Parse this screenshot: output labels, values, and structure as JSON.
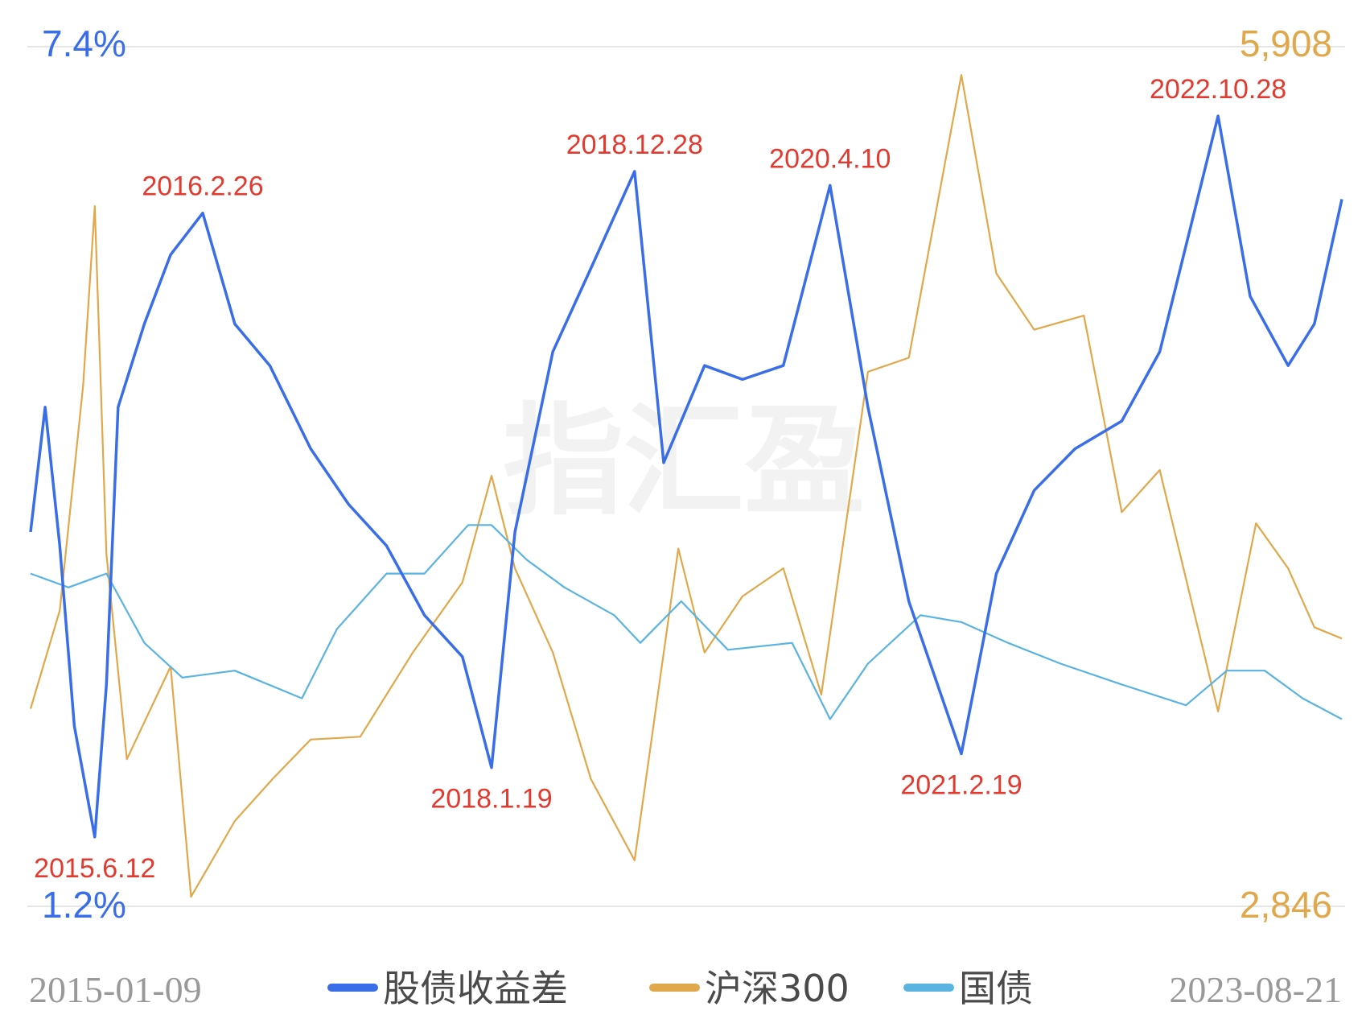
{
  "chart_data": {
    "type": "line",
    "watermark": "指汇盈",
    "x_start_label": "2015-01-09",
    "x_end_label": "2023-08-21",
    "left_axis": {
      "max_label": "7.4%",
      "min_label": "1.2%",
      "range": [
        1.2,
        7.4
      ],
      "color": "#3a6ee8"
    },
    "right_axis": {
      "max_label": "5,908",
      "min_label": "2,846",
      "range": [
        2846,
        5908
      ],
      "color": "#e0a84a"
    },
    "grid": true,
    "legend_position": "bottom",
    "series": [
      {
        "name": "股债收益差",
        "axis": "left",
        "color": "#3a6ee8",
        "points": [
          [
            "2015-01-09",
            3.9
          ],
          [
            "2015-02-13",
            4.8
          ],
          [
            "2015-03-20",
            3.8
          ],
          [
            "2015-04-24",
            2.5
          ],
          [
            "2015-06-12",
            1.7
          ],
          [
            "2015-07-10",
            2.8
          ],
          [
            "2015-08-07",
            4.8
          ],
          [
            "2015-10-09",
            5.4
          ],
          [
            "2015-12-11",
            5.9
          ],
          [
            "2016-02-26",
            6.2
          ],
          [
            "2016-05-13",
            5.4
          ],
          [
            "2016-08-05",
            5.1
          ],
          [
            "2016-11-11",
            4.5
          ],
          [
            "2017-02-10",
            4.1
          ],
          [
            "2017-05-12",
            3.8
          ],
          [
            "2017-08-11",
            3.3
          ],
          [
            "2017-11-10",
            3.0
          ],
          [
            "2018-01-19",
            2.2
          ],
          [
            "2018-03-16",
            3.9
          ],
          [
            "2018-06-15",
            5.2
          ],
          [
            "2018-09-14",
            5.8
          ],
          [
            "2018-12-28",
            6.5
          ],
          [
            "2019-03-08",
            4.4
          ],
          [
            "2019-06-14",
            5.1
          ],
          [
            "2019-09-13",
            5.0
          ],
          [
            "2019-12-20",
            5.1
          ],
          [
            "2020-04-10",
            6.4
          ],
          [
            "2020-07-10",
            4.8
          ],
          [
            "2020-10-16",
            3.4
          ],
          [
            "2021-02-19",
            2.3
          ],
          [
            "2021-05-14",
            3.6
          ],
          [
            "2021-08-13",
            4.2
          ],
          [
            "2021-11-19",
            4.5
          ],
          [
            "2022-03-11",
            4.7
          ],
          [
            "2022-06-10",
            5.2
          ],
          [
            "2022-10-28",
            6.9
          ],
          [
            "2023-01-13",
            5.6
          ],
          [
            "2023-04-14",
            5.1
          ],
          [
            "2023-06-16",
            5.4
          ],
          [
            "2023-08-21",
            6.3
          ]
        ]
      },
      {
        "name": "沪深300",
        "axis": "right",
        "color": "#e0a84a",
        "points": [
          [
            "2015-01-09",
            3550
          ],
          [
            "2015-03-20",
            3900
          ],
          [
            "2015-05-15",
            4700
          ],
          [
            "2015-06-12",
            5340
          ],
          [
            "2015-07-10",
            4100
          ],
          [
            "2015-08-28",
            3370
          ],
          [
            "2015-12-11",
            3700
          ],
          [
            "2016-01-29",
            2880
          ],
          [
            "2016-05-13",
            3150
          ],
          [
            "2016-08-12",
            3300
          ],
          [
            "2016-11-11",
            3440
          ],
          [
            "2017-03-10",
            3450
          ],
          [
            "2017-07-14",
            3750
          ],
          [
            "2017-11-10",
            4000
          ],
          [
            "2018-01-19",
            4380
          ],
          [
            "2018-03-16",
            4050
          ],
          [
            "2018-06-15",
            3750
          ],
          [
            "2018-09-14",
            3300
          ],
          [
            "2018-12-28",
            3010
          ],
          [
            "2019-04-12",
            4120
          ],
          [
            "2019-06-14",
            3750
          ],
          [
            "2019-09-13",
            3950
          ],
          [
            "2019-12-20",
            4050
          ],
          [
            "2020-03-20",
            3600
          ],
          [
            "2020-07-10",
            4750
          ],
          [
            "2020-10-16",
            4800
          ],
          [
            "2021-02-19",
            5807
          ],
          [
            "2021-05-14",
            5100
          ],
          [
            "2021-08-13",
            4900
          ],
          [
            "2021-12-10",
            4950
          ],
          [
            "2022-03-11",
            4250
          ],
          [
            "2022-06-10",
            4400
          ],
          [
            "2022-10-28",
            3540
          ],
          [
            "2023-01-27",
            4210
          ],
          [
            "2023-04-14",
            4050
          ],
          [
            "2023-06-16",
            3840
          ],
          [
            "2023-08-21",
            3800
          ]
        ]
      },
      {
        "name": "国债",
        "axis": "left",
        "color": "#5ab3e0",
        "points": [
          [
            "2015-01-09",
            3.6
          ],
          [
            "2015-04-10",
            3.5
          ],
          [
            "2015-07-10",
            3.6
          ],
          [
            "2015-10-09",
            3.1
          ],
          [
            "2016-01-08",
            2.85
          ],
          [
            "2016-05-13",
            2.9
          ],
          [
            "2016-10-21",
            2.7
          ],
          [
            "2017-01-13",
            3.2
          ],
          [
            "2017-05-12",
            3.6
          ],
          [
            "2017-08-11",
            3.6
          ],
          [
            "2017-11-24",
            3.95
          ],
          [
            "2018-01-19",
            3.95
          ],
          [
            "2018-04-13",
            3.7
          ],
          [
            "2018-07-13",
            3.5
          ],
          [
            "2018-11-09",
            3.3
          ],
          [
            "2019-01-11",
            3.1
          ],
          [
            "2019-04-19",
            3.4
          ],
          [
            "2019-08-09",
            3.05
          ],
          [
            "2020-01-10",
            3.1
          ],
          [
            "2020-04-10",
            2.55
          ],
          [
            "2020-07-10",
            2.95
          ],
          [
            "2020-11-13",
            3.3
          ],
          [
            "2021-02-19",
            3.25
          ],
          [
            "2021-06-11",
            3.1
          ],
          [
            "2021-10-15",
            2.95
          ],
          [
            "2022-03-11",
            2.8
          ],
          [
            "2022-08-12",
            2.65
          ],
          [
            "2022-11-18",
            2.9
          ],
          [
            "2023-02-17",
            2.9
          ],
          [
            "2023-05-19",
            2.7
          ],
          [
            "2023-08-21",
            2.55
          ]
        ]
      }
    ],
    "annotations": [
      {
        "text": "2015.6.12",
        "date": "2015-06-12",
        "value": 1.7,
        "position": "below"
      },
      {
        "text": "2016.2.26",
        "date": "2016-02-26",
        "value": 6.2,
        "position": "above"
      },
      {
        "text": "2018.1.19",
        "date": "2018-01-19",
        "value": 2.2,
        "position": "below"
      },
      {
        "text": "2018.12.28",
        "date": "2018-12-28",
        "value": 6.5,
        "position": "above"
      },
      {
        "text": "2020.4.10",
        "date": "2020-04-10",
        "value": 6.4,
        "position": "above"
      },
      {
        "text": "2021.2.19",
        "date": "2021-02-19",
        "value": 2.3,
        "position": "below"
      },
      {
        "text": "2022.10.28",
        "date": "2022-10-28",
        "value": 6.9,
        "position": "above"
      }
    ]
  }
}
